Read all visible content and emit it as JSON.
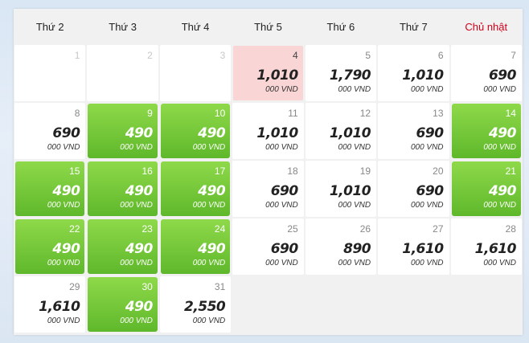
{
  "weekdays": [
    "Thứ 2",
    "Thứ 3",
    "Thứ 4",
    "Thứ 5",
    "Thứ 6",
    "Thứ 7",
    "Chủ nhật"
  ],
  "colors": {
    "cheapest": "#6cc535",
    "selected": "#f9d5d5",
    "sunday": "#d0021b"
  },
  "weeks": [
    [
      {
        "day": "1",
        "state": "disabled"
      },
      {
        "day": "2",
        "state": "disabled"
      },
      {
        "day": "3",
        "state": "disabled"
      },
      {
        "day": "4",
        "price": "1,010",
        "unit": "000 VND",
        "state": "selected"
      },
      {
        "day": "5",
        "price": "1,790",
        "unit": "000 VND",
        "state": "normal"
      },
      {
        "day": "6",
        "price": "1,010",
        "unit": "000 VND",
        "state": "normal"
      },
      {
        "day": "7",
        "price": "690",
        "unit": "000 VND",
        "state": "normal"
      }
    ],
    [
      {
        "day": "8",
        "price": "690",
        "unit": "000 VND",
        "state": "normal"
      },
      {
        "day": "9",
        "price": "490",
        "unit": "000 VND",
        "state": "cheapest"
      },
      {
        "day": "10",
        "price": "490",
        "unit": "000 VND",
        "state": "cheapest"
      },
      {
        "day": "11",
        "price": "1,010",
        "unit": "000 VND",
        "state": "normal"
      },
      {
        "day": "12",
        "price": "1,010",
        "unit": "000 VND",
        "state": "normal"
      },
      {
        "day": "13",
        "price": "690",
        "unit": "000 VND",
        "state": "normal"
      },
      {
        "day": "14",
        "price": "490",
        "unit": "000 VND",
        "state": "cheapest"
      }
    ],
    [
      {
        "day": "15",
        "price": "490",
        "unit": "000 VND",
        "state": "cheapest"
      },
      {
        "day": "16",
        "price": "490",
        "unit": "000 VND",
        "state": "cheapest"
      },
      {
        "day": "17",
        "price": "490",
        "unit": "000 VND",
        "state": "cheapest"
      },
      {
        "day": "18",
        "price": "690",
        "unit": "000 VND",
        "state": "normal"
      },
      {
        "day": "19",
        "price": "1,010",
        "unit": "000 VND",
        "state": "normal"
      },
      {
        "day": "20",
        "price": "690",
        "unit": "000 VND",
        "state": "normal"
      },
      {
        "day": "21",
        "price": "490",
        "unit": "000 VND",
        "state": "cheapest"
      }
    ],
    [
      {
        "day": "22",
        "price": "490",
        "unit": "000 VND",
        "state": "cheapest"
      },
      {
        "day": "23",
        "price": "490",
        "unit": "000 VND",
        "state": "cheapest"
      },
      {
        "day": "24",
        "price": "490",
        "unit": "000 VND",
        "state": "cheapest"
      },
      {
        "day": "25",
        "price": "690",
        "unit": "000 VND",
        "state": "normal"
      },
      {
        "day": "26",
        "price": "890",
        "unit": "000 VND",
        "state": "normal"
      },
      {
        "day": "27",
        "price": "1,610",
        "unit": "000 VND",
        "state": "normal"
      },
      {
        "day": "28",
        "price": "1,610",
        "unit": "000 VND",
        "state": "normal"
      }
    ],
    [
      {
        "day": "29",
        "price": "1,610",
        "unit": "000 VND",
        "state": "normal"
      },
      {
        "day": "30",
        "price": "490",
        "unit": "000 VND",
        "state": "cheapest"
      },
      {
        "day": "31",
        "price": "2,550",
        "unit": "000 VND",
        "state": "normal"
      },
      {
        "state": "empty"
      },
      {
        "state": "empty"
      },
      {
        "state": "empty"
      },
      {
        "state": "empty"
      }
    ]
  ]
}
